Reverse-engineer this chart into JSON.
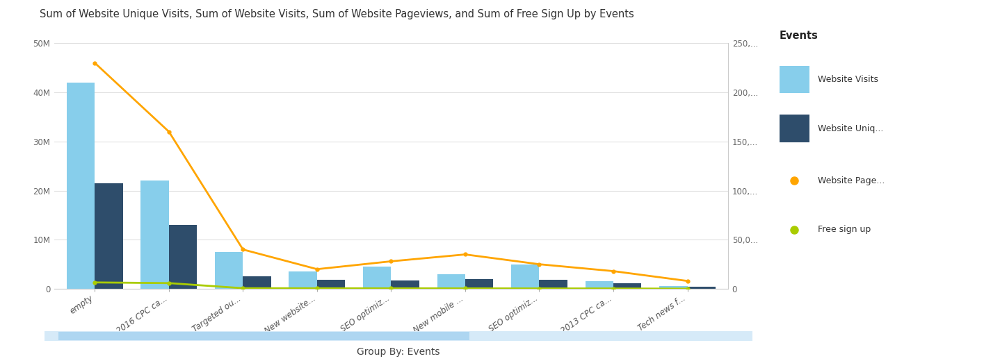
{
  "title": "Sum of Website Unique Visits, Sum of Website Visits, Sum of Website Pageviews, and Sum of Free Sign Up by Events",
  "xlabel": "Group By: Events",
  "categories": [
    "empty",
    "2016 CPC ca...",
    "Targeted ou...",
    "New website...",
    "SEO optimiz...",
    "New mobile ...",
    "SEO optimiz...",
    "2013 CPC ca...",
    "Tech news f..."
  ],
  "website_visits": [
    42000000,
    22000000,
    7500000,
    3500000,
    4500000,
    3000000,
    5000000,
    1500000,
    500000
  ],
  "website_unique": [
    21500000,
    13000000,
    2500000,
    1800000,
    1700000,
    2000000,
    1800000,
    1200000,
    400000
  ],
  "website_pageviews": [
    230000,
    160000,
    40000,
    20000,
    28000,
    35000,
    25000,
    18000,
    8000
  ],
  "free_signup": [
    6500,
    5800,
    600,
    500,
    450,
    400,
    350,
    300,
    100
  ],
  "bar_color_visits": "#87CEEB",
  "bar_color_unique": "#2E4D6B",
  "line_color_pageviews": "#FFA500",
  "line_color_signup": "#AACC00",
  "left_ylim": [
    0,
    50000000
  ],
  "right_ylim": [
    0,
    250000
  ],
  "left_yticks": [
    0,
    10000000,
    20000000,
    30000000,
    40000000,
    50000000
  ],
  "left_ytick_labels": [
    "0",
    "10M",
    "20M",
    "30M",
    "40M",
    "50M"
  ],
  "right_yticks": [
    0,
    50000,
    100000,
    150000,
    200000,
    250000
  ],
  "right_ytick_labels": [
    "0",
    "50,0...",
    "100,...",
    "150,...",
    "200,...",
    "250,..."
  ],
  "legend_title": "Events",
  "legend_items": [
    "Website Visits",
    "Website Uniq...",
    "Website Page...",
    "Free sign up"
  ],
  "background_color": "#ffffff",
  "title_fontsize": 10.5,
  "tick_fontsize": 8.5,
  "footer_bar_color": "#D6EAF8",
  "footer_inner_color": "#AED6F1",
  "bar_width": 0.38
}
